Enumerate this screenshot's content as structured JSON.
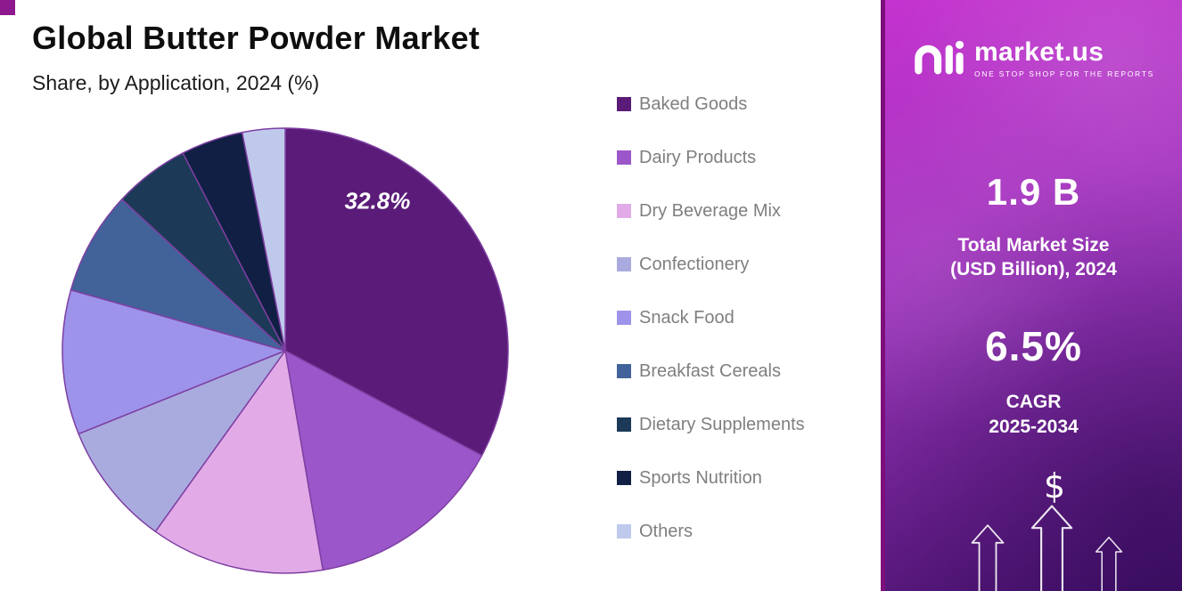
{
  "header": {
    "title": "Global Butter Powder Market",
    "subtitle": "Share, by Application, 2024 (%)"
  },
  "chart_data": {
    "type": "pie",
    "title": "Global Butter Powder Market Share, by Application, 2024 (%)",
    "unit": "%",
    "start_angle_deg": -90,
    "direction": "clockwise",
    "legend_position": "right-of-chart",
    "slice_border_color": "#7e3fa2",
    "annotation": {
      "slice": "Baked Goods",
      "text": "32.8%",
      "angle_deg": 33,
      "radius_frac": 0.76
    },
    "slices": [
      {
        "label": "Baked Goods",
        "value": 32.8,
        "color": "#5a1c78"
      },
      {
        "label": "Dairy Products",
        "value": 14.5,
        "color": "#9b57c9"
      },
      {
        "label": "Dry Beverage Mix",
        "value": 12.6,
        "color": "#e2abe8"
      },
      {
        "label": "Confectionery",
        "value": 9.0,
        "color": "#a9abdf"
      },
      {
        "label": "Snack Food",
        "value": 10.5,
        "color": "#9d93ea"
      },
      {
        "label": "Breakfast Cereals",
        "value": 7.5,
        "color": "#41639a"
      },
      {
        "label": "Dietary Supplements",
        "value": 5.5,
        "color": "#1c3a57"
      },
      {
        "label": "Sports Nutrition",
        "value": 4.5,
        "color": "#111f44"
      },
      {
        "label": "Others",
        "value": 3.1,
        "color": "#bfc9ec"
      }
    ]
  },
  "sidebar": {
    "brand": {
      "name": "market.us",
      "tagline": "ONE STOP SHOP FOR THE REPORTS"
    },
    "market_size": {
      "value": "1.9 B",
      "label_line1": "Total Market Size",
      "label_line2": "(USD Billion), 2024"
    },
    "cagr": {
      "value": "6.5%",
      "label_line1": "CAGR",
      "label_line2": "2025-2034"
    },
    "dollar_symbol": "$",
    "colors": {
      "gradient_top": "#c433cf",
      "gradient_mid": "#9a35ba",
      "gradient_bottom": "#4a1170"
    }
  }
}
